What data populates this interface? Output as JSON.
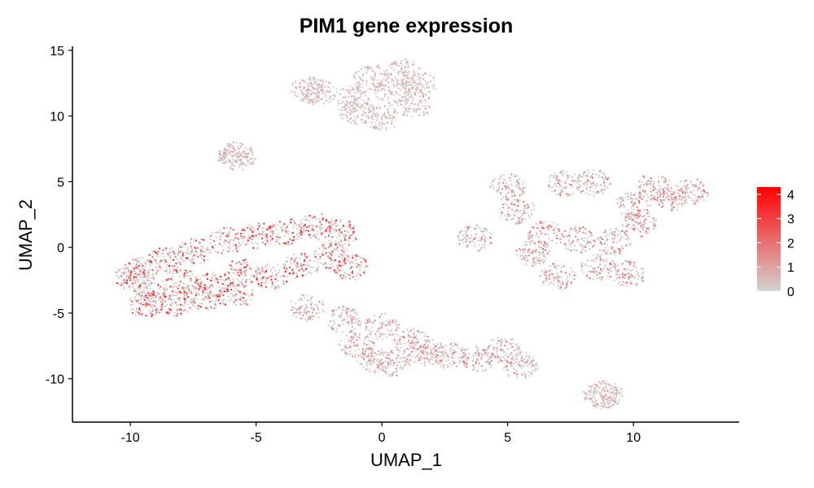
{
  "chart_data": {
    "type": "scatter",
    "title": "PIM1 gene expression",
    "xlabel": "UMAP_1",
    "ylabel": "UMAP_2",
    "xlim": [
      -12.3,
      14.2
    ],
    "ylim": [
      -13.3,
      15.3
    ],
    "x_ticks": [
      -10,
      -5,
      0,
      5,
      10
    ],
    "y_ticks": [
      -10,
      -5,
      0,
      5,
      10,
      15
    ],
    "grid": false,
    "colors": {
      "low": "#D3D3D3",
      "high": "#FF0000"
    },
    "legend": {
      "position": "right",
      "min": 0,
      "max": 4.3,
      "ticks": [
        0,
        1,
        2,
        3,
        4
      ]
    },
    "clusters": [
      {
        "name": "left-large",
        "points": [
          [
            -10.0,
            -2.5
          ],
          [
            -9.6,
            -1.8
          ],
          [
            -9.2,
            -3.5
          ],
          [
            -8.6,
            -1.0
          ],
          [
            -8.0,
            -2.6
          ],
          [
            -7.4,
            -0.3
          ],
          [
            -6.8,
            -2.9
          ],
          [
            -6.2,
            0.5
          ],
          [
            -5.6,
            -1.9
          ],
          [
            -5.0,
            0.9
          ],
          [
            -4.4,
            -2.2
          ],
          [
            -3.8,
            1.2
          ],
          [
            -3.2,
            -1.4
          ],
          [
            -2.6,
            1.6
          ],
          [
            -2.0,
            -0.6
          ],
          [
            -1.6,
            1.1
          ],
          [
            -1.2,
            -1.5
          ],
          [
            -9.4,
            -4.4
          ],
          [
            -8.2,
            -4.2
          ],
          [
            -7.0,
            -3.8
          ],
          [
            -5.8,
            -3.6
          ]
        ],
        "mean_expression": 1.4
      },
      {
        "name": "top-center",
        "points": [
          [
            -2.9,
            12.0
          ],
          [
            -2.5,
            11.8
          ],
          [
            -1.2,
            11.5
          ],
          [
            -1.0,
            10.4
          ],
          [
            -0.4,
            12.9
          ],
          [
            0.0,
            9.9
          ],
          [
            0.4,
            11.8
          ],
          [
            0.9,
            13.3
          ],
          [
            1.3,
            10.9
          ],
          [
            1.5,
            12.4
          ]
        ],
        "mean_expression": 0.4
      },
      {
        "name": "bottom-center",
        "points": [
          [
            -3.0,
            -4.6
          ],
          [
            -1.5,
            -5.5
          ],
          [
            -1.0,
            -7.5
          ],
          [
            -0.3,
            -8.5
          ],
          [
            0.0,
            -6.0
          ],
          [
            0.5,
            -8.8
          ],
          [
            1.2,
            -7.2
          ],
          [
            1.8,
            -8.0
          ],
          [
            2.6,
            -8.2
          ],
          [
            3.8,
            -8.5
          ],
          [
            4.8,
            -7.8
          ],
          [
            5.5,
            -9.0
          ]
        ],
        "mean_expression": 0.7
      },
      {
        "name": "right-large",
        "points": [
          [
            3.7,
            0.7
          ],
          [
            5.0,
            4.6
          ],
          [
            5.4,
            2.8
          ],
          [
            6.0,
            -0.4
          ],
          [
            6.5,
            1.0
          ],
          [
            7.0,
            -2.2
          ],
          [
            7.8,
            0.6
          ],
          [
            8.6,
            -1.5
          ],
          [
            9.2,
            0.4
          ],
          [
            9.8,
            -2.0
          ],
          [
            10.2,
            1.8
          ],
          [
            10.0,
            3.2
          ],
          [
            10.8,
            4.6
          ],
          [
            11.5,
            3.8
          ],
          [
            12.3,
            4.2
          ],
          [
            7.3,
            4.9
          ],
          [
            8.4,
            4.9
          ]
        ],
        "mean_expression": 0.8
      },
      {
        "name": "small-outliers",
        "points": [
          [
            -5.9,
            7.0
          ],
          [
            -5.7,
            6.9
          ],
          [
            8.7,
            -11.3
          ],
          [
            8.9,
            -11.2
          ]
        ],
        "mean_expression": 0.5
      }
    ]
  }
}
